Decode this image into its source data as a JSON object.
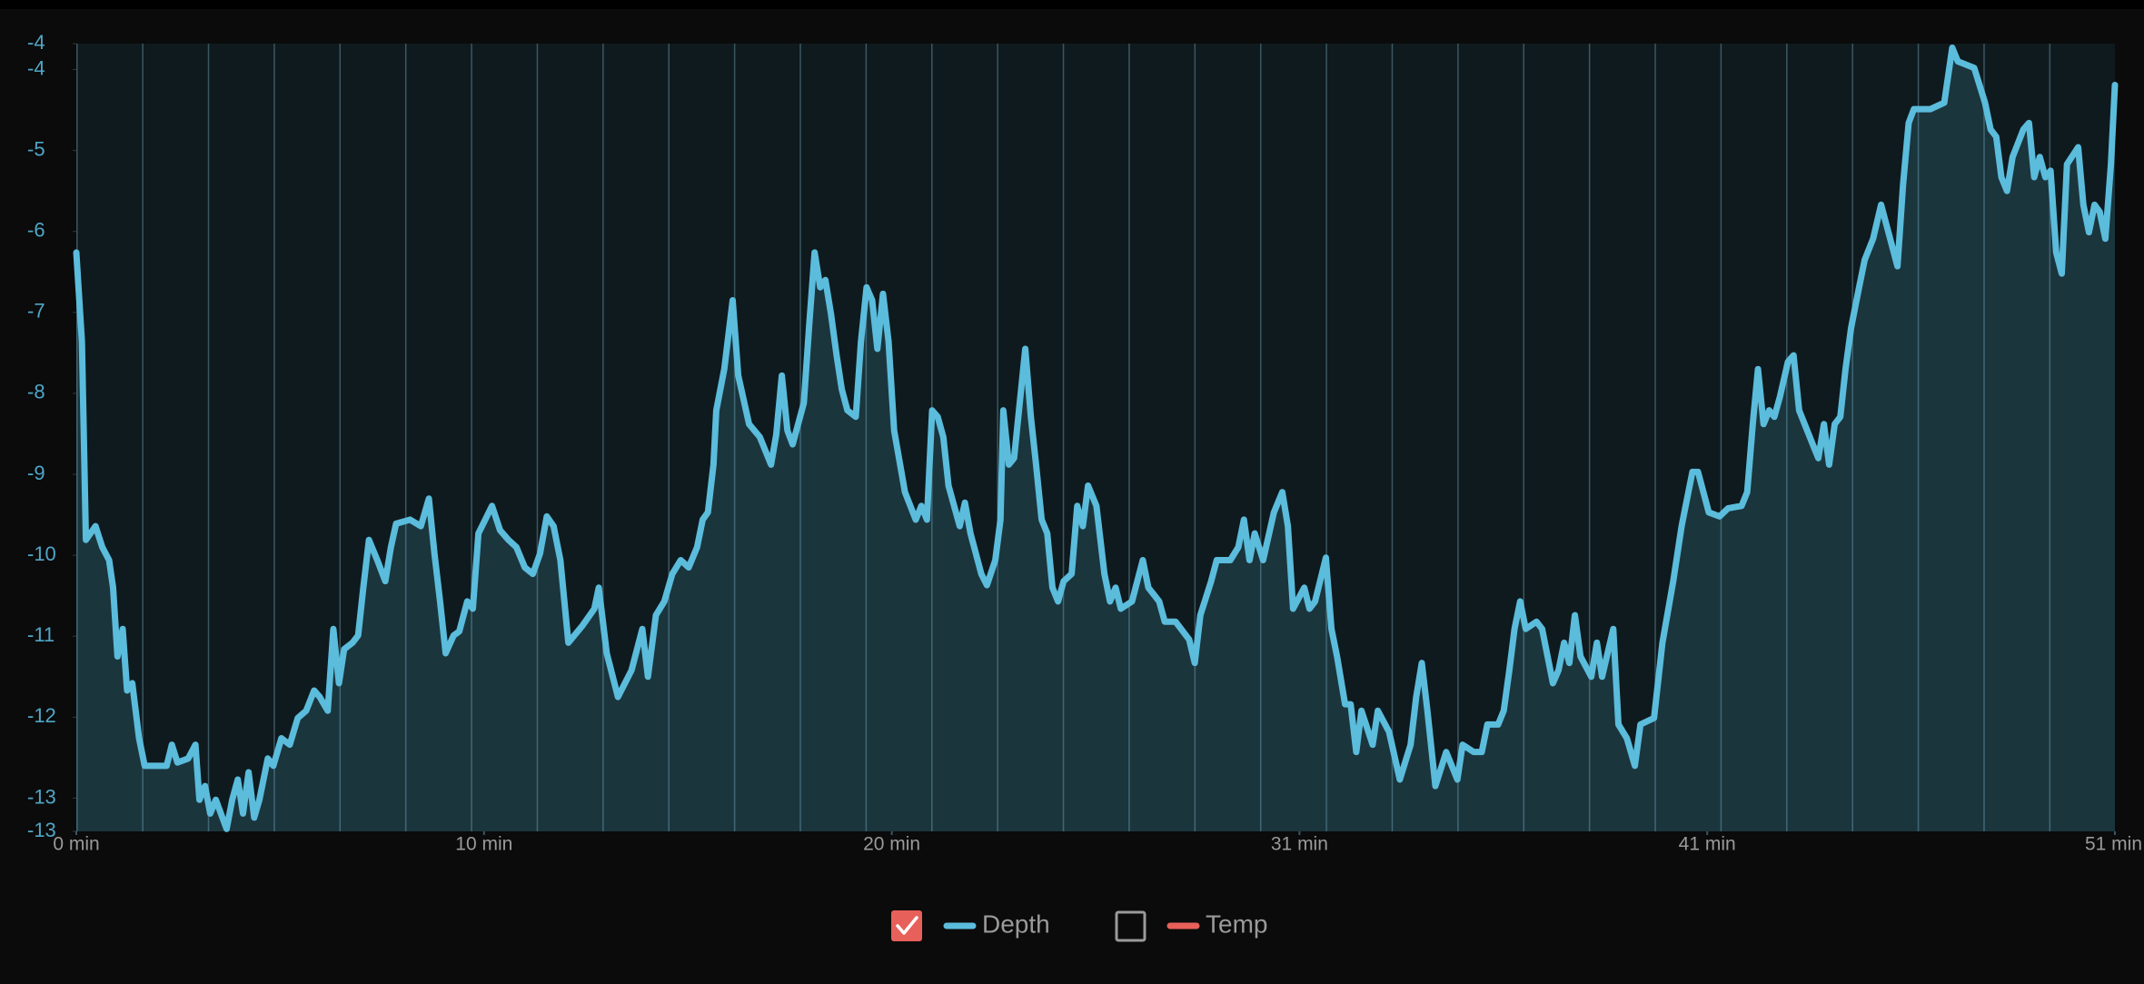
{
  "chart_data": {
    "type": "area-line",
    "x": [
      0,
      0.14,
      0.24,
      0.48,
      0.65,
      0.82,
      0.92,
      1.03,
      1.16,
      1.27,
      1.4,
      1.57,
      1.71,
      2.26,
      2.39,
      2.53,
      2.8,
      2.98,
      3.08,
      3.22,
      3.35,
      3.49,
      3.76,
      3.9,
      4.04,
      4.17,
      4.31,
      4.45,
      4.58,
      4.79,
      4.93,
      5.13,
      5.34,
      5.54,
      5.75,
      5.95,
      6.09,
      6.29,
      6.43,
      6.57,
      6.7,
      6.91,
      7.05,
      7.18,
      7.32,
      7.53,
      7.73,
      7.87,
      8.0,
      8.35,
      8.62,
      8.82,
      8.96,
      9.1,
      9.24,
      9.44,
      9.58,
      9.78,
      9.92,
      10.06,
      10.4,
      10.6,
      10.81,
      11.01,
      11.22,
      11.42,
      11.6,
      11.77,
      11.94,
      12.11,
      12.31,
      12.66,
      12.96,
      13.07,
      13.27,
      13.55,
      13.89,
      14.16,
      14.3,
      14.5,
      14.71,
      14.91,
      15.12,
      15.32,
      15.53,
      15.67,
      15.8,
      15.94,
      16.01,
      16.21,
      16.42,
      16.56,
      16.83,
      17.1,
      17.38,
      17.51,
      17.65,
      17.79,
      17.92,
      18.2,
      18.33,
      18.47,
      18.61,
      18.74,
      18.88,
      19.02,
      19.15,
      19.29,
      19.5,
      19.63,
      19.77,
      19.91,
      20.04,
      20.18,
      20.32,
      20.46,
      20.73,
      21.0,
      21.14,
      21.28,
      21.41,
      21.55,
      21.69,
      21.82,
      22.1,
      22.23,
      22.37,
      22.64,
      22.78,
      22.99,
      23.12,
      23.19,
      23.33,
      23.46,
      23.74,
      23.88,
      24.01,
      24.15,
      24.29,
      24.42,
      24.56,
      24.7,
      24.9,
      25.04,
      25.18,
      25.31,
      25.52,
      25.72,
      25.86,
      26.0,
      26.13,
      26.41,
      26.68,
      26.82,
      27.09,
      27.23,
      27.5,
      27.84,
      27.98,
      28.12,
      28.39,
      28.53,
      28.87,
      29.07,
      29.21,
      29.35,
      29.48,
      29.69,
      29.96,
      30.17,
      30.31,
      30.44,
      30.72,
      30.85,
      30.99,
      31.26,
      31.4,
      31.54,
      31.74,
      31.88,
      32.02,
      32.15,
      32.43,
      32.56,
      32.84,
      33.11,
      33.38,
      33.52,
      33.66,
      33.8,
      34.0,
      34.27,
      34.55,
      34.68,
      34.96,
      35.16,
      35.3,
      35.57,
      35.71,
      35.85,
      35.98,
      36.12,
      36.26,
      36.53,
      36.67,
      36.94,
      37.08,
      37.22,
      37.35,
      37.49,
      37.63,
      37.9,
      38.04,
      38.17,
      38.45,
      38.58,
      38.79,
      38.99,
      39.13,
      39.47,
      39.68,
      39.95,
      40.16,
      40.43,
      40.57,
      40.84,
      41.11,
      41.32,
      41.66,
      41.8,
      41.94,
      42.07,
      42.21,
      42.35,
      42.48,
      42.62,
      42.82,
      42.96,
      43.1,
      43.44,
      43.58,
      43.72,
      43.85,
      43.99,
      44.13,
      44.26,
      44.4,
      44.6,
      44.74,
      44.95,
      45.15,
      45.29,
      45.56,
      45.7,
      45.84,
      45.97,
      46.38,
      46.73,
      46.93,
      47.07,
      47.48,
      47.75,
      47.89,
      48.03,
      48.16,
      48.3,
      48.44,
      48.71,
      48.85,
      48.98,
      49.12,
      49.26,
      49.39,
      49.53,
      49.67,
      49.8,
      50.08,
      50.21,
      50.35,
      50.49,
      50.62,
      50.76,
      50.9,
      51.0
    ],
    "series": [
      {
        "name": "Depth",
        "color": "#5bbcdc",
        "visible": true,
        "values": [
          -6.26,
          -7.36,
          -9.81,
          -9.64,
          -9.9,
          -10.06,
          -10.4,
          -11.25,
          -10.91,
          -11.67,
          -11.58,
          -12.26,
          -12.6,
          -12.6,
          -12.34,
          -12.56,
          -12.51,
          -12.34,
          -13.02,
          -12.85,
          -13.19,
          -13.02,
          -13.38,
          -13.02,
          -12.77,
          -13.19,
          -12.68,
          -13.24,
          -13.02,
          -12.51,
          -12.6,
          -12.26,
          -12.34,
          -12.01,
          -11.92,
          -11.67,
          -11.75,
          -11.92,
          -10.91,
          -11.58,
          -11.16,
          -11.08,
          -10.99,
          -10.4,
          -9.81,
          -10.06,
          -10.32,
          -9.9,
          -9.61,
          -9.56,
          -9.64,
          -9.3,
          -9.98,
          -10.57,
          -11.21,
          -10.99,
          -10.94,
          -10.57,
          -10.66,
          -9.73,
          -9.39,
          -9.69,
          -9.81,
          -9.9,
          -10.15,
          -10.23,
          -9.98,
          -9.52,
          -9.64,
          -10.06,
          -11.08,
          -10.87,
          -10.66,
          -10.4,
          -11.21,
          -11.75,
          -11.42,
          -10.91,
          -11.5,
          -10.74,
          -10.57,
          -10.23,
          -10.06,
          -10.15,
          -9.9,
          -9.56,
          -9.47,
          -8.88,
          -8.21,
          -7.7,
          -6.85,
          -7.78,
          -8.38,
          -8.54,
          -8.88,
          -8.51,
          -7.78,
          -8.46,
          -8.63,
          -8.12,
          -7.19,
          -6.26,
          -6.69,
          -6.6,
          -7.02,
          -7.53,
          -7.95,
          -8.21,
          -8.29,
          -7.36,
          -6.69,
          -6.85,
          -7.45,
          -6.77,
          -7.36,
          -8.46,
          -9.22,
          -9.56,
          -9.39,
          -9.56,
          -8.21,
          -8.29,
          -8.54,
          -9.14,
          -9.64,
          -9.35,
          -9.73,
          -10.23,
          -10.37,
          -10.06,
          -9.56,
          -8.21,
          -8.88,
          -8.8,
          -7.45,
          -8.29,
          -8.88,
          -9.56,
          -9.73,
          -10.4,
          -10.57,
          -10.32,
          -10.23,
          -9.39,
          -9.64,
          -9.14,
          -9.39,
          -10.23,
          -10.57,
          -10.4,
          -10.66,
          -10.57,
          -10.06,
          -10.4,
          -10.57,
          -10.82,
          -10.82,
          -11.04,
          -11.33,
          -10.74,
          -10.32,
          -10.06,
          -10.06,
          -9.9,
          -9.56,
          -10.06,
          -9.73,
          -10.06,
          -9.47,
          -9.22,
          -9.64,
          -10.66,
          -10.4,
          -10.66,
          -10.57,
          -10.03,
          -10.91,
          -11.25,
          -11.84,
          -11.84,
          -12.43,
          -11.92,
          -12.34,
          -11.92,
          -12.18,
          -12.77,
          -12.34,
          -11.75,
          -11.33,
          -11.92,
          -12.85,
          -12.43,
          -12.77,
          -12.34,
          -12.43,
          -12.43,
          -12.09,
          -12.09,
          -11.92,
          -11.42,
          -10.91,
          -10.57,
          -10.91,
          -10.82,
          -10.91,
          -11.58,
          -11.42,
          -11.08,
          -11.33,
          -10.74,
          -11.25,
          -11.5,
          -11.08,
          -11.5,
          -10.91,
          -12.09,
          -12.26,
          -12.6,
          -12.09,
          -12.01,
          -11.08,
          -10.32,
          -9.64,
          -8.97,
          -8.97,
          -9.47,
          -9.52,
          -9.42,
          -9.39,
          -9.22,
          -8.38,
          -7.7,
          -8.38,
          -8.21,
          -8.29,
          -8.04,
          -7.61,
          -7.53,
          -8.21,
          -8.63,
          -8.8,
          -8.38,
          -8.88,
          -8.38,
          -8.29,
          -7.7,
          -7.19,
          -6.69,
          -6.35,
          -6.09,
          -5.67,
          -5.93,
          -6.43,
          -5.42,
          -4.66,
          -4.49,
          -4.49,
          -4.41,
          -3.73,
          -3.9,
          -3.98,
          -4.41,
          -4.74,
          -4.83,
          -5.33,
          -5.5,
          -5.08,
          -4.74,
          -4.66,
          -5.33,
          -5.08,
          -5.33,
          -5.25,
          -6.26,
          -6.52,
          -5.17,
          -4.96,
          -5.67,
          -6.01,
          -5.67,
          -5.76,
          -6.09,
          -5.17,
          -4.19
        ]
      },
      {
        "name": "Temp",
        "color": "#e8605a",
        "visible": false
      }
    ],
    "xlim": [
      0,
      51
    ],
    "xticks": [
      {
        "value": 0,
        "label": "0 min"
      },
      {
        "value": 10.2,
        "label": "10 min"
      },
      {
        "value": 20.4,
        "label": "20 min"
      },
      {
        "value": 30.6,
        "label": "31 min"
      },
      {
        "value": 40.8,
        "label": "41 min"
      },
      {
        "value": 51,
        "label": "51 min"
      }
    ],
    "ylim": [
      -13.41,
      -3.68
    ],
    "yticks": [
      {
        "value": -3.68,
        "label": "-4"
      },
      -4,
      -5,
      -6,
      -7,
      -8,
      -9,
      -10,
      -11,
      -12,
      -13,
      {
        "value": -13.41,
        "label": "-13"
      }
    ]
  }
}
